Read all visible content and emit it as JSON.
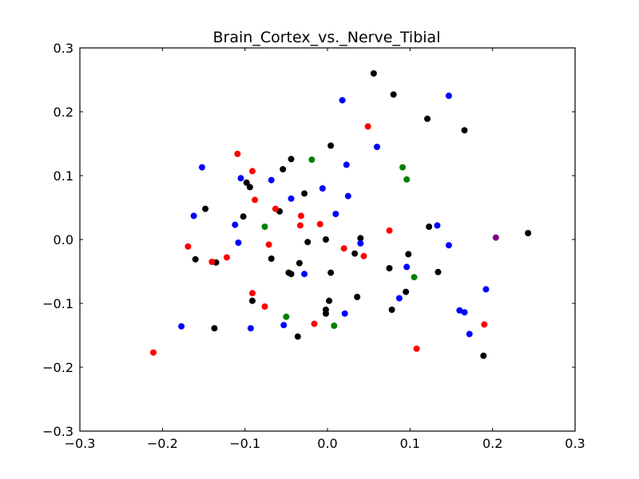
{
  "chart_data": {
    "type": "scatter",
    "title": "Brain_Cortex_vs._Nerve_Tibial",
    "xlabel": "",
    "ylabel": "",
    "xlim": [
      -0.3,
      0.3
    ],
    "ylim": [
      -0.3,
      0.3
    ],
    "x_ticks": [
      "−0.3",
      "−0.2",
      "−0.1",
      "0.0",
      "0.1",
      "0.2",
      "0.3"
    ],
    "y_ticks": [
      "−0.3",
      "−0.2",
      "−0.1",
      "0.0",
      "0.1",
      "0.2",
      "0.3"
    ],
    "grid": false,
    "series": [
      {
        "color": "#000000",
        "points": [
          [
            0.056,
            0.26
          ],
          [
            0.08,
            0.227
          ],
          [
            0.121,
            0.189
          ],
          [
            0.166,
            0.171
          ],
          [
            0.004,
            0.147
          ],
          [
            -0.044,
            0.126
          ],
          [
            -0.054,
            0.11
          ],
          [
            -0.098,
            0.089
          ],
          [
            -0.094,
            0.082
          ],
          [
            -0.028,
            0.072
          ],
          [
            -0.058,
            0.044
          ],
          [
            -0.148,
            0.048
          ],
          [
            -0.102,
            0.036
          ],
          [
            0.04,
            0.002
          ],
          [
            -0.002,
            0.0
          ],
          [
            -0.024,
            -0.004
          ],
          [
            0.123,
            0.02
          ],
          [
            0.243,
            0.01
          ],
          [
            -0.16,
            -0.031
          ],
          [
            -0.135,
            -0.036
          ],
          [
            -0.068,
            -0.03
          ],
          [
            -0.034,
            -0.037
          ],
          [
            0.033,
            -0.022
          ],
          [
            0.098,
            -0.023
          ],
          [
            -0.047,
            -0.052
          ],
          [
            -0.044,
            -0.054
          ],
          [
            0.004,
            -0.052
          ],
          [
            0.075,
            -0.045
          ],
          [
            0.134,
            -0.051
          ],
          [
            0.095,
            -0.082
          ],
          [
            0.036,
            -0.09
          ],
          [
            0.002,
            -0.096
          ],
          [
            -0.091,
            -0.096
          ],
          [
            0.078,
            -0.11
          ],
          [
            -0.002,
            -0.11
          ],
          [
            -0.002,
            -0.116
          ],
          [
            -0.137,
            -0.139
          ],
          [
            -0.036,
            -0.152
          ],
          [
            0.189,
            -0.182
          ]
        ]
      },
      {
        "color": "#0000ff",
        "points": [
          [
            0.018,
            0.218
          ],
          [
            0.147,
            0.225
          ],
          [
            0.06,
            0.145
          ],
          [
            -0.152,
            0.113
          ],
          [
            0.023,
            0.117
          ],
          [
            -0.105,
            0.096
          ],
          [
            -0.068,
            0.093
          ],
          [
            -0.006,
            0.08
          ],
          [
            -0.044,
            0.064
          ],
          [
            0.025,
            0.068
          ],
          [
            -0.162,
            0.037
          ],
          [
            0.01,
            0.04
          ],
          [
            -0.112,
            0.023
          ],
          [
            0.133,
            0.022
          ],
          [
            -0.108,
            -0.005
          ],
          [
            0.04,
            -0.006
          ],
          [
            0.147,
            -0.009
          ],
          [
            -0.028,
            -0.054
          ],
          [
            0.096,
            -0.043
          ],
          [
            0.192,
            -0.078
          ],
          [
            0.087,
            -0.092
          ],
          [
            0.16,
            -0.111
          ],
          [
            0.166,
            -0.114
          ],
          [
            0.021,
            -0.116
          ],
          [
            -0.177,
            -0.136
          ],
          [
            -0.093,
            -0.139
          ],
          [
            -0.053,
            -0.134
          ],
          [
            0.172,
            -0.148
          ]
        ]
      },
      {
        "color": "#ff0000",
        "points": [
          [
            0.049,
            0.177
          ],
          [
            -0.109,
            0.134
          ],
          [
            -0.091,
            0.107
          ],
          [
            -0.088,
            0.062
          ],
          [
            -0.063,
            0.048
          ],
          [
            -0.032,
            0.037
          ],
          [
            0.075,
            0.014
          ],
          [
            -0.033,
            0.022
          ],
          [
            -0.009,
            0.024
          ],
          [
            -0.169,
            -0.011
          ],
          [
            -0.071,
            -0.008
          ],
          [
            0.02,
            -0.014
          ],
          [
            0.044,
            -0.026
          ],
          [
            -0.122,
            -0.028
          ],
          [
            -0.14,
            -0.035
          ],
          [
            -0.091,
            -0.084
          ],
          [
            -0.076,
            -0.105
          ],
          [
            -0.016,
            -0.132
          ],
          [
            0.19,
            -0.133
          ],
          [
            0.108,
            -0.171
          ],
          [
            -0.211,
            -0.177
          ]
        ]
      },
      {
        "color": "#008000",
        "points": [
          [
            -0.019,
            0.125
          ],
          [
            0.091,
            0.113
          ],
          [
            0.096,
            0.094
          ],
          [
            -0.076,
            0.02
          ],
          [
            0.105,
            -0.059
          ],
          [
            -0.05,
            -0.121
          ],
          [
            0.008,
            -0.135
          ]
        ]
      },
      {
        "color": "#800080",
        "points": [
          [
            0.204,
            0.003
          ]
        ]
      }
    ]
  }
}
